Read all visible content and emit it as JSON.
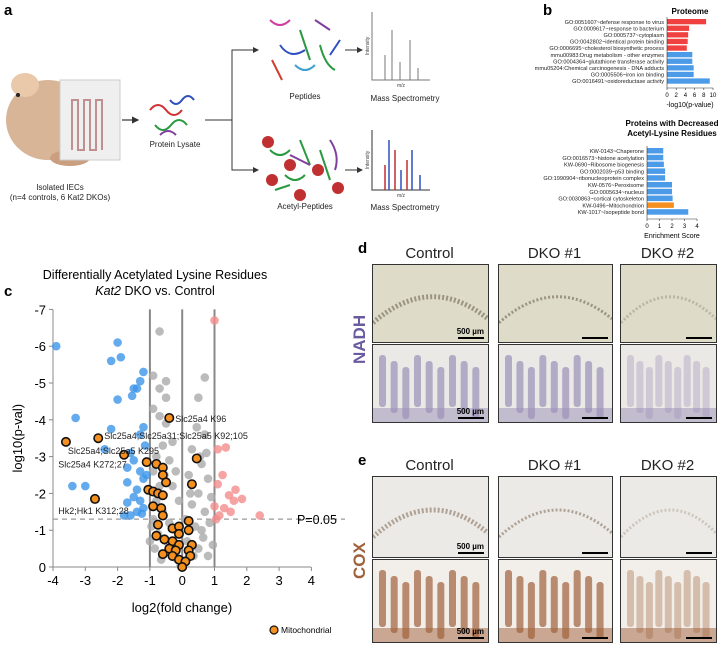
{
  "panel_labels": {
    "a": "a",
    "b": "b",
    "c": "c",
    "d": "d",
    "e": "e"
  },
  "panel_a": {
    "mouse_label_1": "Isolated IECs",
    "mouse_label_2": "(n=4 controls, 6 Kat2 DKOs)",
    "lysate": "Protein Lysate",
    "peptides": "Peptides",
    "acetyl_peptides": "Acetyl-Peptides",
    "ms_top": "Mass Spectrometry",
    "ms_bottom": "Mass Spectrometry",
    "ms_axis_y": "Intensity",
    "ms_axis_x": "m/z",
    "ac": "Ac"
  },
  "chart_data": [
    {
      "type": "bar",
      "orientation": "horizontal",
      "title": "Proteome",
      "xlabel": "-log10(p-value)",
      "xlim": [
        0,
        10
      ],
      "xticks": [
        0,
        2,
        4,
        6,
        8,
        10
      ],
      "categories": [
        "GO:0051607~defense response to virus",
        "GO:0009617~response to bacterium",
        "GO:0005737~cytoplasm",
        "GO:0042802~identical protein binding",
        "GO:0006695~cholesterol biosynthetic process",
        "mmu00983:Drug metabolism - other enzymes",
        "GO:0004364~glutathione transferase activity",
        "mmu05204:Chemical carcinogenesis - DNA adducts",
        "GO:0005506~iron ion binding",
        "GO:0016491~oxidoreductase activity"
      ],
      "values": [
        8.5,
        4.8,
        4.6,
        4.5,
        4.3,
        5.5,
        5.5,
        5.8,
        5.8,
        9.3
      ],
      "colors": [
        "#f04040",
        "#f04040",
        "#f04040",
        "#f04040",
        "#f04040",
        "#4c9be8",
        "#4c9be8",
        "#4c9be8",
        "#4c9be8",
        "#4c9be8"
      ]
    },
    {
      "type": "bar",
      "orientation": "horizontal",
      "title": "Proteins with Decreased",
      "title2": "Acetyl-Lysine Residues",
      "xlabel": "Enrichment Score",
      "xlim": [
        0,
        4
      ],
      "xticks": [
        0,
        1,
        2,
        3,
        4
      ],
      "categories": [
        "KW-0143~Chaperone",
        "GO:0016573~histone acetylation",
        "KW-0690~Ribosome biogenesis",
        "GO:0002039~p53 binding",
        "GO:1990904~ribonucleoprotein complex",
        "KW-0576~Peroxisome",
        "GO:0005634~nucleus",
        "GO:0030863~cortical cytoskeleton",
        "KW-0496~Mitochondrion",
        "KW-1017~Isopeptide bond"
      ],
      "values": [
        1.3,
        1.3,
        1.35,
        1.45,
        1.45,
        2.0,
        2.0,
        2.05,
        2.15,
        3.3
      ],
      "colors": [
        "#4c9be8",
        "#4c9be8",
        "#4c9be8",
        "#4c9be8",
        "#4c9be8",
        "#4c9be8",
        "#4c9be8",
        "#4c9be8",
        "#f5901e",
        "#4c9be8"
      ]
    },
    {
      "type": "scatter",
      "title": "Differentially Acetylated Lysine Residues",
      "subtitle_italic": "Kat2",
      "subtitle_rest": " DKO vs. Control",
      "xlabel": "log2(fold change)",
      "ylabel": "log10(p-val)",
      "xlim": [
        -4,
        4
      ],
      "ylim": [
        0,
        -7
      ],
      "xticks": [
        "-4",
        "-3",
        "-2",
        "-1",
        "0",
        "1",
        "2",
        "3",
        "4"
      ],
      "yticks": [
        "0",
        "-1",
        "-2",
        "-3",
        "-4",
        "-5",
        "-6",
        "-7"
      ],
      "threshold_label": "P=0.05",
      "threshold": -1.3,
      "vlines": [
        -1,
        0,
        1
      ],
      "legend": "Mitochondrial",
      "colors": {
        "down": "#3d96ea",
        "up": "#f28c8c",
        "ns": "#aaaaaa",
        "mito": "#f5901e"
      },
      "down": [
        [
          -3.9,
          -6
        ],
        [
          -2.0,
          -6.1
        ],
        [
          -2.2,
          -5.6
        ],
        [
          -1.9,
          -5.7
        ],
        [
          -1.2,
          -5.3
        ],
        [
          -1.3,
          -5.05
        ],
        [
          -1.5,
          -4.85
        ],
        [
          -1.4,
          -4.85
        ],
        [
          -1.55,
          -4.65
        ],
        [
          -2.0,
          -4.55
        ],
        [
          -3.3,
          -4.05
        ],
        [
          -2.2,
          -3.75
        ],
        [
          -1.2,
          -3.8
        ],
        [
          -1.3,
          -3.6
        ],
        [
          -2.4,
          -3.2
        ],
        [
          -1.6,
          -3.1
        ],
        [
          -1.5,
          -2.9
        ],
        [
          -1.7,
          -2.7
        ],
        [
          -1.3,
          -2.6
        ],
        [
          -1.2,
          -2.4
        ],
        [
          -3.4,
          -2.2
        ],
        [
          -3.0,
          -2.2
        ],
        [
          -1.7,
          -2.3
        ],
        [
          -1.4,
          -2.1
        ],
        [
          -1.5,
          -1.9
        ],
        [
          -1.3,
          -1.8
        ],
        [
          -1.7,
          -1.75
        ],
        [
          -1.2,
          -1.6
        ],
        [
          -1.4,
          -1.5
        ],
        [
          -1.8,
          -1.4
        ],
        [
          -1.6,
          -1.4
        ],
        [
          -1.25,
          -1.45
        ],
        [
          -1.1,
          -2.5
        ],
        [
          -1.15,
          -3.3
        ]
      ],
      "up": [
        [
          1.0,
          -6.7
        ],
        [
          1.1,
          -3.2
        ],
        [
          1.35,
          -3.25
        ],
        [
          1.25,
          -2.5
        ],
        [
          1.1,
          -2.25
        ],
        [
          1.65,
          -2.1
        ],
        [
          1.45,
          -1.95
        ],
        [
          1.85,
          -1.85
        ],
        [
          1.6,
          -1.8
        ],
        [
          1.0,
          -1.65
        ],
        [
          1.3,
          -1.6
        ],
        [
          1.5,
          -1.5
        ],
        [
          2.4,
          -1.4
        ],
        [
          1.15,
          -1.4
        ],
        [
          1.05,
          -1.3
        ]
      ],
      "ns": [
        [
          -0.7,
          -6.4
        ],
        [
          -0.9,
          -5.2
        ],
        [
          -0.5,
          -5.05
        ],
        [
          -0.7,
          -4.85
        ],
        [
          -0.5,
          -4.6
        ],
        [
          0.7,
          -5.15
        ],
        [
          0.5,
          -4.6
        ],
        [
          -0.9,
          -4.3
        ],
        [
          -0.7,
          -4.1
        ],
        [
          -0.5,
          -3.9
        ],
        [
          0.45,
          -3.8
        ],
        [
          0.7,
          -3.6
        ],
        [
          -0.3,
          -3.4
        ],
        [
          0.75,
          -3.1
        ],
        [
          -0.6,
          -3.3
        ],
        [
          -0.8,
          -3.0
        ],
        [
          0.3,
          -3.2
        ],
        [
          0.6,
          -2.8
        ],
        [
          -0.4,
          -2.9
        ],
        [
          -0.9,
          -2.6
        ],
        [
          -0.2,
          -2.6
        ],
        [
          0.2,
          -2.5
        ],
        [
          0.8,
          -2.4
        ],
        [
          -0.7,
          -2.2
        ],
        [
          -0.3,
          -2.2
        ],
        [
          0.5,
          -2.0
        ],
        [
          0.9,
          -1.9
        ],
        [
          -0.8,
          -1.8
        ],
        [
          -0.1,
          -1.8
        ],
        [
          0.3,
          -1.7
        ],
        [
          0.7,
          -1.5
        ],
        [
          -0.6,
          -1.5
        ],
        [
          -0.9,
          -1.3
        ],
        [
          0.85,
          -1.2
        ],
        [
          -0.4,
          -1.2
        ],
        [
          0.4,
          -1.1
        ],
        [
          -0.75,
          -0.9
        ],
        [
          0.65,
          -0.8
        ],
        [
          -0.5,
          -0.7
        ],
        [
          0.15,
          -0.7
        ],
        [
          0.5,
          -0.5
        ],
        [
          -0.85,
          -0.5
        ],
        [
          -0.3,
          -0.4
        ],
        [
          0.35,
          -0.3
        ],
        [
          -0.15,
          -0.2
        ],
        [
          0.1,
          -0.15
        ],
        [
          -0.05,
          -0.05
        ],
        [
          0.6,
          -1.0
        ],
        [
          -0.95,
          -1.1
        ],
        [
          0.95,
          -0.6
        ],
        [
          -0.2,
          -1.0
        ],
        [
          0.25,
          -2.0
        ],
        [
          -0.55,
          -2.5
        ],
        [
          0.55,
          -3.0
        ],
        [
          0.1,
          -1.3
        ],
        [
          -1.0,
          -0.7
        ],
        [
          0.8,
          -0.3
        ],
        [
          -0.65,
          -0.2
        ]
      ],
      "mito": [
        [
          -0.4,
          -4.05
        ],
        [
          -2.6,
          -3.5
        ],
        [
          -3.6,
          -3.4
        ],
        [
          -1.8,
          -3.05
        ],
        [
          -1.1,
          -2.85
        ],
        [
          -0.8,
          -2.8
        ],
        [
          -0.6,
          -2.7
        ],
        [
          0.45,
          -2.95
        ],
        [
          -0.6,
          -2.5
        ],
        [
          -0.5,
          -2.3
        ],
        [
          0.3,
          -2.25
        ],
        [
          -1.05,
          -2.1
        ],
        [
          -0.9,
          -2.05
        ],
        [
          -0.75,
          -2.0
        ],
        [
          -0.6,
          -1.95
        ],
        [
          -2.7,
          -1.85
        ],
        [
          -0.9,
          -1.65
        ],
        [
          -0.65,
          -1.6
        ],
        [
          -0.6,
          -1.4
        ],
        [
          0.2,
          -1.25
        ],
        [
          -0.75,
          -1.15
        ],
        [
          -0.3,
          -1.05
        ],
        [
          -0.1,
          -1.1
        ],
        [
          0.2,
          -1.0
        ],
        [
          -0.1,
          -0.9
        ],
        [
          -0.8,
          -0.85
        ],
        [
          -0.55,
          -0.75
        ],
        [
          -0.3,
          -0.7
        ],
        [
          -0.1,
          -0.6
        ],
        [
          0.3,
          -0.6
        ],
        [
          -0.4,
          -0.5
        ],
        [
          -0.2,
          -0.45
        ],
        [
          0.2,
          -0.45
        ],
        [
          -0.6,
          -0.35
        ],
        [
          -0.3,
          -0.3
        ],
        [
          0.25,
          -0.3
        ],
        [
          -0.1,
          -0.2
        ],
        [
          0.1,
          -0.15
        ],
        [
          0.0,
          0.0
        ]
      ],
      "annotations": [
        {
          "text": "Slc25a4 K96",
          "x": -0.4,
          "y": -4.05
        },
        {
          "text": "Slc25a4;Slc25a31;Slc25a5 K92;105",
          "x": -2.6,
          "y": -3.5
        },
        {
          "text": "Slc25a4;Slc25a5 K295",
          "x": -3.6,
          "y": -3.4
        },
        {
          "text": "Slc25a4 K272;27",
          "x": -3.9,
          "y": -2.9
        },
        {
          "text": "Hk2;Hk1 K312;28",
          "x": -3.9,
          "y": -1.55
        }
      ]
    }
  ],
  "panel_d": {
    "columns": [
      "Control",
      "DKO #1",
      "DKO #2"
    ],
    "stain": "NADH",
    "scale": "500 µm"
  },
  "panel_e": {
    "columns": [
      "Control",
      "DKO #1",
      "DKO #2"
    ],
    "stain": "COX",
    "scale": "500 µm"
  }
}
